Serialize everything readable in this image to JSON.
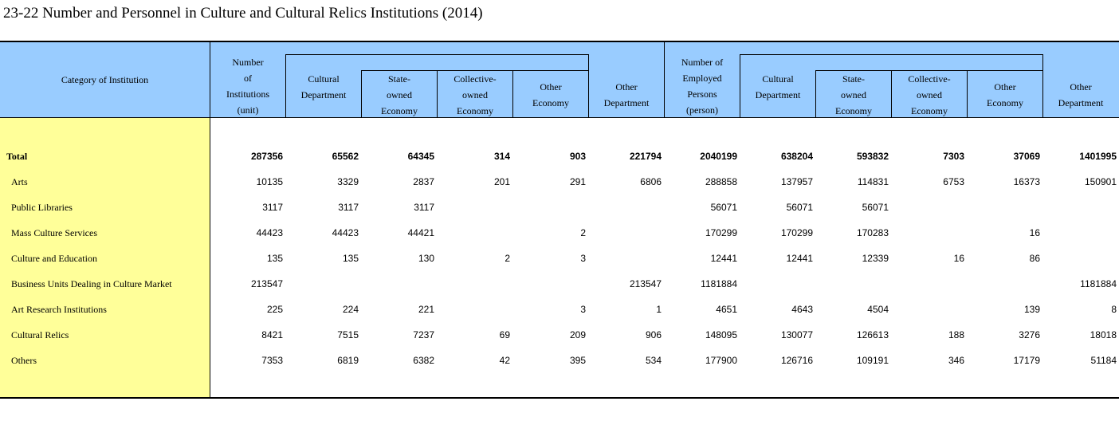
{
  "title": "23-22  Number and Personnel in Culture and Cultural Relics Institutions (2014)",
  "headers": {
    "category": "Category of Institution",
    "num_institutions": [
      "Number",
      "of",
      "Institutions",
      "(unit)"
    ],
    "cultural_department": [
      "Cultural",
      "Department"
    ],
    "state_owned": [
      "State-",
      "owned",
      "Economy"
    ],
    "collective_owned": [
      "Collective-",
      "owned",
      "Economy"
    ],
    "other_economy": [
      "Other",
      "Economy"
    ],
    "other_department": [
      "Other",
      "Department"
    ],
    "num_employed": [
      "Number of",
      "Employed",
      "Persons",
      "(person)"
    ]
  },
  "rows": [
    {
      "label": "Total",
      "values": [
        "287356",
        "65562",
        "64345",
        "314",
        "903",
        "221794",
        "2040199",
        "638204",
        "593832",
        "7303",
        "37069",
        "1401995"
      ]
    },
    {
      "label": "Arts",
      "values": [
        "10135",
        "3329",
        "2837",
        "201",
        "291",
        "6806",
        "288858",
        "137957",
        "114831",
        "6753",
        "16373",
        "150901"
      ]
    },
    {
      "label": "Public Libraries",
      "values": [
        "3117",
        "3117",
        "3117",
        "",
        "",
        "",
        "56071",
        "56071",
        "56071",
        "",
        "",
        ""
      ]
    },
    {
      "label": "Mass Culture Services",
      "values": [
        "44423",
        "44423",
        "44421",
        "",
        "2",
        "",
        "170299",
        "170299",
        "170283",
        "",
        "16",
        ""
      ]
    },
    {
      "label": "Culture and Education",
      "values": [
        "135",
        "135",
        "130",
        "2",
        "3",
        "",
        "12441",
        "12441",
        "12339",
        "16",
        "86",
        ""
      ]
    },
    {
      "label": "Business Units Dealing in Culture Market",
      "values": [
        "213547",
        "",
        "",
        "",
        "",
        "213547",
        "1181884",
        "",
        "",
        "",
        "",
        "1181884"
      ]
    },
    {
      "label": "Art Research Institutions",
      "values": [
        "225",
        "224",
        "221",
        "",
        "3",
        "1",
        "4651",
        "4643",
        "4504",
        "",
        "139",
        "8"
      ]
    },
    {
      "label": "Cultural Relics",
      "values": [
        "8421",
        "7515",
        "7237",
        "69",
        "209",
        "906",
        "148095",
        "130077",
        "126613",
        "188",
        "3276",
        "18018"
      ]
    },
    {
      "label": "Others",
      "values": [
        "7353",
        "6819",
        "6382",
        "42",
        "395",
        "534",
        "177900",
        "126716",
        "109191",
        "346",
        "17179",
        "51184"
      ]
    }
  ]
}
